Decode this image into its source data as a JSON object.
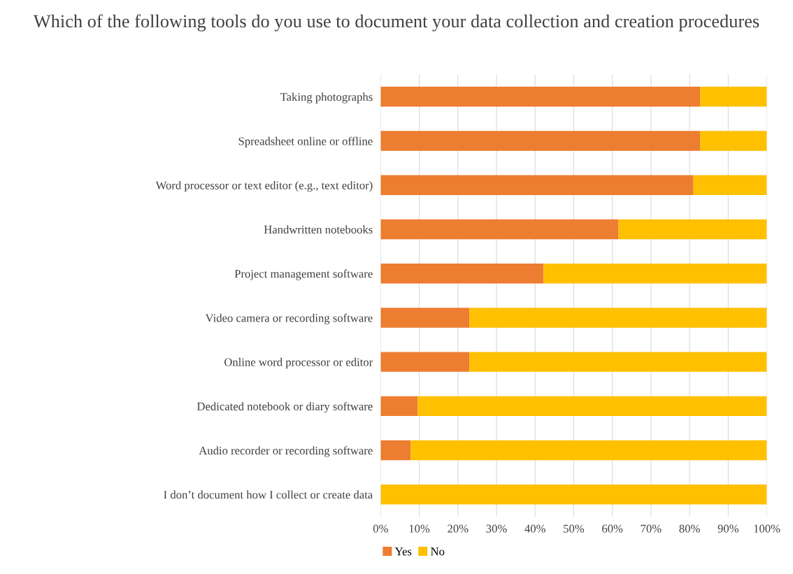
{
  "chart_data": {
    "type": "bar",
    "orientation": "horizontal",
    "stacked": true,
    "title": "Which of the following tools do you use to document your data collection and creation procedures",
    "categories": [
      "Taking photographs",
      "Spreadsheet online or offline",
      "Word processor or text editor (e.g., text editor)",
      "Handwritten notebooks",
      "Project management software",
      "Video camera or recording software",
      "Online word processor or editor",
      "Dedicated notebook or diary software",
      "Audio recorder or recording software",
      "I don’t document how I collect or create data"
    ],
    "series": [
      {
        "name": "Yes",
        "color": "#ed7d31",
        "values": [
          82.8,
          82.8,
          81.0,
          61.6,
          42.2,
          23.0,
          23.0,
          9.6,
          7.8,
          0
        ]
      },
      {
        "name": "No",
        "color": "#ffc000",
        "values": [
          17.2,
          17.2,
          19.0,
          38.4,
          57.8,
          77.0,
          77.0,
          90.4,
          92.2,
          100
        ]
      }
    ],
    "xlim": [
      0,
      100
    ],
    "xticks": [
      {
        "value": 0,
        "label": "0%"
      },
      {
        "value": 10,
        "label": "10%"
      },
      {
        "value": 20,
        "label": "20%"
      },
      {
        "value": 30,
        "label": "30%"
      },
      {
        "value": 40,
        "label": "40%"
      },
      {
        "value": 50,
        "label": "50%"
      },
      {
        "value": 60,
        "label": "60%"
      },
      {
        "value": 70,
        "label": "70%"
      },
      {
        "value": 80,
        "label": "80%"
      },
      {
        "value": 90,
        "label": "90%"
      },
      {
        "value": 100,
        "label": "100%"
      }
    ],
    "grid": "x",
    "legend": "bottom left"
  }
}
